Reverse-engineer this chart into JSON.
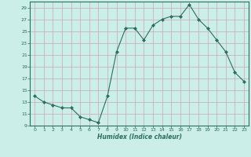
{
  "xlabel": "Humidex (Indice chaleur)",
  "ylabel": "",
  "x": [
    0,
    1,
    2,
    3,
    4,
    5,
    6,
    7,
    8,
    9,
    10,
    11,
    12,
    13,
    14,
    15,
    16,
    17,
    18,
    19,
    20,
    21,
    22,
    23
  ],
  "y": [
    14,
    13,
    12.5,
    12,
    12,
    10.5,
    10,
    9.5,
    14,
    21.5,
    25.5,
    25.5,
    23.5,
    26,
    27,
    27.5,
    27.5,
    29.5,
    27,
    25.5,
    23.5,
    21.5,
    18,
    16.5
  ],
  "line_color": "#2d6e5e",
  "bg_color": "#cceee8",
  "grid_color": "#c8a8b0",
  "ylim": [
    9,
    30
  ],
  "yticks": [
    9,
    11,
    13,
    15,
    17,
    19,
    21,
    23,
    25,
    27,
    29
  ],
  "xlim": [
    -0.5,
    23.5
  ],
  "xticks": [
    0,
    1,
    2,
    3,
    4,
    5,
    6,
    7,
    8,
    9,
    10,
    11,
    12,
    13,
    14,
    15,
    16,
    17,
    18,
    19,
    20,
    21,
    22,
    23
  ]
}
